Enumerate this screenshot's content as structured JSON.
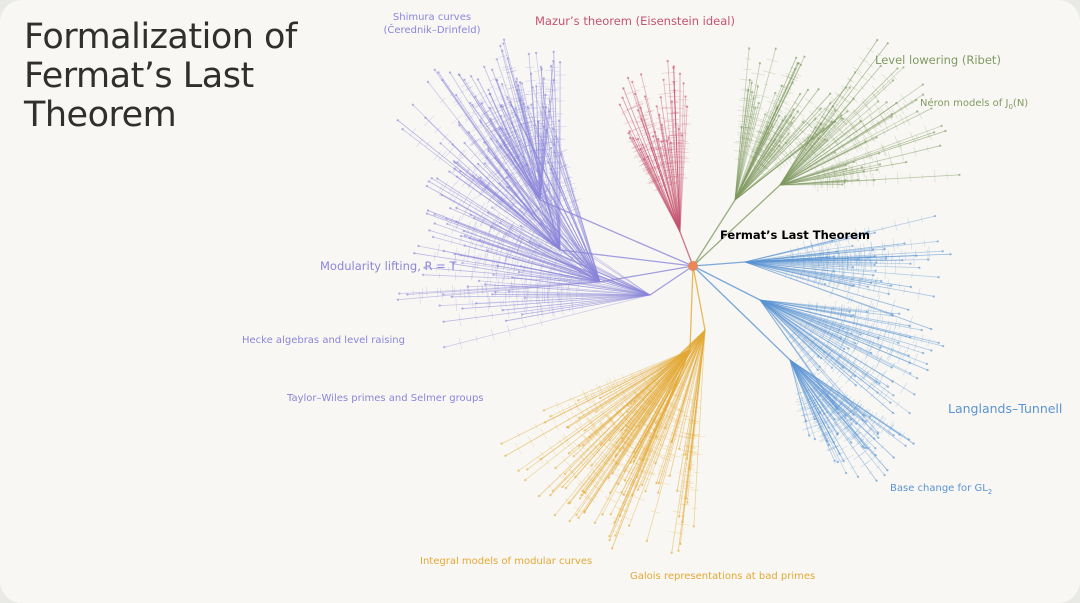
{
  "title": {
    "line1": "Formalization of",
    "line2": "Fermat’s Last",
    "line3": "Theorem"
  },
  "root": {
    "label": "Fermat’s Last Theorem",
    "color": "#e8875a"
  },
  "colors": {
    "purple": "#8b86da",
    "red": "#c6536f",
    "green": "#809a62",
    "blue": "#5b94d3",
    "yellow": "#e3a936",
    "text": "#2f2f2c"
  },
  "labels": {
    "shimura_line1": "Shimura curves",
    "shimura_line2": "(Čerednik–Drinfeld)",
    "mazur": "Mazur’s theorem (Eisenstein ideal)",
    "level_lowering": "Level lowering (Ribet)",
    "neron_prefix": "Néron models of J",
    "neron_sub": "0",
    "neron_suffix": "(N)",
    "modularity": "Modularity lifting, R = T",
    "hecke": "Hecke algebras and level raising",
    "taylor_wiles": "Taylor–Wiles primes and Selmer groups",
    "langlands": "Langlands–Tunnell",
    "base_change_prefix": "Base change for GL",
    "base_change_sub": "2",
    "integral_models": "Integral models of modular curves",
    "galois": "Galois representations at bad primes"
  }
}
